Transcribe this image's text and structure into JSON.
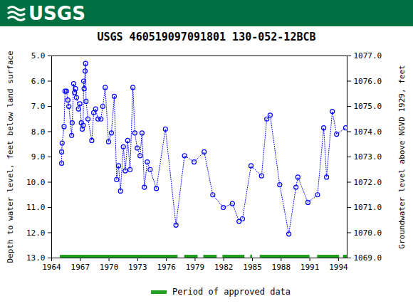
{
  "chart_data": {
    "type": "scatter",
    "banner": "USGS",
    "title": "USGS 460519097091801 130-052-12BCB",
    "x_label": null,
    "y_label": "Depth to water level, feet below land surface",
    "y2_label": "Groundwater level above NGVD 1929, feet",
    "xlim": [
      1964,
      1994.9
    ],
    "xticks": [
      1964,
      1967,
      1970,
      1973,
      1976,
      1979,
      1982,
      1985,
      1988,
      1991,
      1994
    ],
    "ylim": [
      13,
      5
    ],
    "yticks": [
      {
        "value": 5,
        "label": "5.0"
      },
      {
        "value": 6,
        "label": "6.0"
      },
      {
        "value": 7,
        "label": "7.0"
      },
      {
        "value": 8,
        "label": "8.0"
      },
      {
        "value": 9,
        "label": "9.0"
      },
      {
        "value": 10,
        "label": "10.0"
      },
      {
        "value": 11,
        "label": "11.0"
      },
      {
        "value": 12,
        "label": "12.0"
      },
      {
        "value": 13,
        "label": "13.0"
      }
    ],
    "y2lim": [
      1069,
      1077
    ],
    "y2ticks": [
      {
        "value": 1069,
        "label": "1069.0"
      },
      {
        "value": 1070,
        "label": "1070.0"
      },
      {
        "value": 1071,
        "label": "1071.0"
      },
      {
        "value": 1072,
        "label": "1072.0"
      },
      {
        "value": 1073,
        "label": "1073.0"
      },
      {
        "value": 1074,
        "label": "1074.0"
      },
      {
        "value": 1075,
        "label": "1075.0"
      },
      {
        "value": 1076,
        "label": "1076.0"
      },
      {
        "value": 1077,
        "label": "1077.0"
      }
    ],
    "grid": false,
    "series": [
      {
        "name": "Depth to water level",
        "color": "#0000ff",
        "marker": "circle",
        "line_style": "dotted",
        "x": [
          1965.05,
          1965.05,
          1965.1,
          1965.3,
          1965.4,
          1965.55,
          1965.7,
          1965.8,
          1966.1,
          1966.15,
          1966.3,
          1966.4,
          1966.5,
          1966.6,
          1966.8,
          1966.95,
          1967.1,
          1967.2,
          1967.3,
          1967.35,
          1967.4,
          1967.5,
          1967.55,
          1967.6,
          1967.8,
          1968.2,
          1968.4,
          1968.6,
          1968.85,
          1969.15,
          1969.35,
          1969.6,
          1969.95,
          1970.25,
          1970.55,
          1970.8,
          1971.0,
          1971.2,
          1971.5,
          1971.7,
          1971.95,
          1972.2,
          1972.5,
          1972.7,
          1972.95,
          1973.25,
          1973.45,
          1973.7,
          1974.0,
          1974.3,
          1974.95,
          1975.9,
          1977.0,
          1977.9,
          1978.9,
          1979.95,
          1980.85,
          1981.95,
          1982.9,
          1983.6,
          1983.95,
          1984.85,
          1985.95,
          1986.5,
          1986.85,
          1987.85,
          1988.8,
          1989.55,
          1989.75,
          1990.8,
          1991.8,
          1992.45,
          1992.75,
          1993.35,
          1993.8,
          1994.75
        ],
        "values": [
          9.25,
          8.8,
          8.45,
          7.8,
          6.4,
          6.4,
          6.75,
          7.0,
          8.15,
          7.65,
          6.1,
          6.45,
          6.3,
          6.65,
          7.1,
          6.9,
          7.65,
          7.9,
          7.75,
          6.0,
          6.3,
          5.6,
          5.3,
          6.8,
          7.5,
          8.35,
          7.25,
          7.1,
          7.5,
          7.5,
          7.0,
          6.25,
          8.4,
          8.05,
          6.6,
          9.9,
          9.35,
          10.35,
          8.6,
          9.55,
          8.35,
          9.5,
          6.25,
          8.05,
          8.65,
          8.95,
          8.05,
          10.2,
          9.2,
          9.5,
          10.25,
          7.9,
          11.7,
          8.95,
          9.2,
          8.8,
          10.5,
          11.0,
          10.85,
          11.55,
          11.45,
          9.35,
          9.75,
          7.5,
          7.35,
          10.1,
          12.05,
          10.2,
          9.8,
          10.8,
          10.5,
          7.85,
          9.8,
          7.2,
          8.1,
          7.85
        ]
      }
    ],
    "approved_periods": {
      "name": "Period of approved data",
      "color": "#22a022",
      "start": [
        1964.9,
        1977.9,
        1979.9,
        1981.9,
        1984.8,
        1985.8,
        1991.8,
        1994.5
      ],
      "end": [
        1977.2,
        1979.3,
        1981.3,
        1984.2,
        1985.0,
        1991.0,
        1994.1,
        1994.9
      ]
    }
  }
}
